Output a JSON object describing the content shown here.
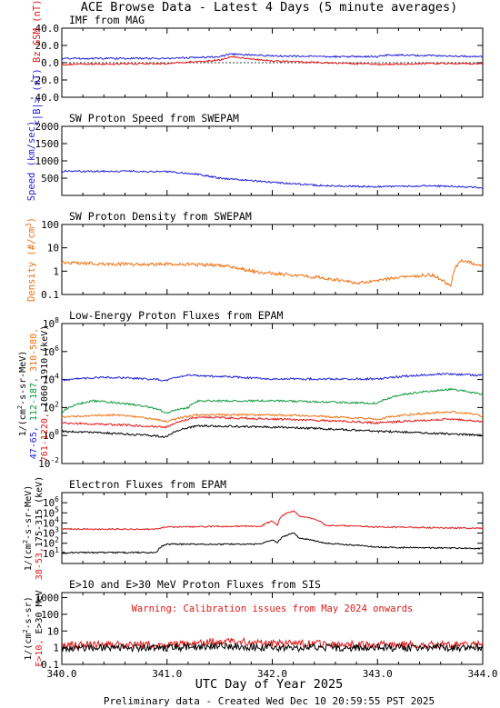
{
  "header": {
    "title": "ACE Browse Data  - Latest 4 Days (5 minute averages)"
  },
  "footer": {
    "xlabel": "UTC Day of Year 2025",
    "note": "Preliminary data - Created Wed Dec 10 20:59:55 PST 2025"
  },
  "xaxis": {
    "range": [
      340.0,
      344.0
    ],
    "ticks": [
      "340.0",
      "341.0",
      "342.0",
      "343.0",
      "344.0"
    ]
  },
  "colors": {
    "blue": "#1f1fd6",
    "red": "#e01818",
    "green": "#0f9a3c",
    "orange": "#f07010",
    "black": "#000000"
  },
  "chart_data": [
    {
      "type": "line",
      "title": "IMF from MAG",
      "ylabel_parts": [
        {
          "text": "<|B|>",
          "unit": " (nT)",
          "color": "blue"
        },
        {
          "text": "Bz GSM",
          "unit": " (nT)",
          "color": "red"
        }
      ],
      "ylim": [
        -40,
        40
      ],
      "yscale": "linear",
      "yticks": [
        {
          "v": -40,
          "label": "-40.0"
        },
        {
          "v": -20,
          "label": "-20.0"
        },
        {
          "v": 0,
          "label": "0.0"
        },
        {
          "v": 20,
          "label": "20.0"
        },
        {
          "v": 40,
          "label": "40.0"
        }
      ],
      "series": [
        {
          "key": "Bt",
          "color": "blue",
          "x": [
            340.0,
            341.0,
            341.5,
            341.6,
            342.0,
            342.5,
            343.0,
            343.1,
            343.6,
            344.0
          ],
          "y": [
            5,
            5,
            7,
            10,
            8,
            7,
            7,
            9,
            8,
            7
          ]
        },
        {
          "key": "Bz",
          "color": "red",
          "x": [
            340.0,
            341.0,
            341.5,
            341.6,
            342.0,
            342.5,
            343.0,
            343.5,
            344.0
          ],
          "y": [
            -2,
            -1,
            3,
            7,
            2,
            0,
            -2,
            -1,
            -1
          ]
        }
      ]
    },
    {
      "type": "line",
      "title": "SW Proton Speed from SWEPAM",
      "ylabel_parts": [
        {
          "text": "Speed (km/sec)",
          "unit": "",
          "color": "blue"
        }
      ],
      "ylim": [
        0,
        2000
      ],
      "yscale": "linear",
      "yticks": [
        {
          "v": 500,
          "label": "500"
        },
        {
          "v": 1000,
          "label": "1000"
        },
        {
          "v": 1500,
          "label": "1500"
        },
        {
          "v": 2000,
          "label": "2000"
        }
      ],
      "series": [
        {
          "key": "speed",
          "color": "blue",
          "x": [
            340.0,
            340.5,
            341.0,
            341.3,
            341.5,
            342.0,
            342.5,
            343.0,
            343.5,
            344.0
          ],
          "y": [
            700,
            700,
            690,
            610,
            500,
            380,
            280,
            250,
            280,
            230
          ]
        }
      ]
    },
    {
      "type": "line",
      "title": "SW Proton Density from SWEPAM",
      "ylabel_parts": [
        {
          "text": "Density (#/cm",
          "unit": "3",
          "tail": ")",
          "color": "orange"
        }
      ],
      "ylim": [
        0.1,
        100
      ],
      "yscale": "log",
      "yticks": [
        {
          "v": 0.1,
          "label": "0.1"
        },
        {
          "v": 1,
          "label": "1"
        },
        {
          "v": 10,
          "label": "10"
        },
        {
          "v": 100,
          "label": "100"
        }
      ],
      "series": [
        {
          "key": "density",
          "color": "orange",
          "x": [
            340.0,
            340.5,
            341.0,
            341.5,
            341.8,
            342.0,
            342.5,
            342.8,
            343.0,
            343.5,
            343.7,
            343.8,
            344.0
          ],
          "y": [
            2.3,
            2.0,
            2.0,
            1.8,
            1.0,
            0.8,
            0.5,
            0.3,
            0.4,
            0.7,
            0.2,
            3.0,
            1.5
          ]
        }
      ]
    },
    {
      "type": "line",
      "title": "Low-Energy Proton Fluxes from EPAM",
      "ylabel_lines": [
        {
          "parts": [
            {
              "text": "1/(cm",
              "color": "black"
            },
            {
              "text": "2",
              "sup": true,
              "color": "black"
            },
            {
              "text": "-s-sr-MeV)",
              "color": "black"
            }
          ]
        },
        {
          "parts": [
            {
              "text": "47-65,",
              "color": "blue"
            },
            {
              "text": " 112-187,",
              "color": "green"
            },
            {
              "text": " 310-580,",
              "color": "orange"
            }
          ]
        },
        {
          "parts": [
            {
              "text": "761-1220,",
              "color": "red"
            },
            {
              "text": " 1060-1910 (keV)",
              "color": "black"
            }
          ]
        }
      ],
      "ylim": [
        0.01,
        100000000
      ],
      "yscale": "log",
      "yticks": [
        {
          "v": 0.01,
          "label": "10",
          "exp": "-2"
        },
        {
          "v": 1,
          "label": "10",
          "exp": "0"
        },
        {
          "v": 100,
          "label": "10",
          "exp": "2"
        },
        {
          "v": 10000,
          "label": "10",
          "exp": "4"
        },
        {
          "v": 1000000,
          "label": "10",
          "exp": "6"
        },
        {
          "v": 100000000,
          "label": "10",
          "exp": "8"
        }
      ],
      "series": [
        {
          "key": "p47",
          "color": "blue",
          "x": [
            340.0,
            340.4,
            341.0,
            341.2,
            342.0,
            343.0,
            343.6,
            344.0
          ],
          "y": [
            9000,
            15000,
            9000,
            20000,
            11000,
            11000,
            25000,
            20000
          ]
        },
        {
          "key": "p112",
          "color": "green",
          "x": [
            340.0,
            340.3,
            341.0,
            341.2,
            341.3,
            342.0,
            343.0,
            343.7,
            344.0
          ],
          "y": [
            40,
            300,
            40,
            100,
            300,
            300,
            200,
            2000,
            800
          ]
        },
        {
          "key": "p310",
          "color": "orange",
          "x": [
            340.0,
            340.5,
            341.0,
            341.3,
            342.0,
            343.0,
            343.7,
            344.0
          ],
          "y": [
            20,
            30,
            10,
            30,
            30,
            15,
            50,
            25
          ]
        },
        {
          "key": "p761",
          "color": "red",
          "x": [
            340.0,
            341.0,
            341.3,
            342.0,
            343.0,
            343.7,
            344.0
          ],
          "y": [
            8,
            4,
            20,
            15,
            8,
            15,
            10
          ]
        },
        {
          "key": "p1060",
          "color": "black",
          "x": [
            340.0,
            341.0,
            341.3,
            342.0,
            343.0,
            344.0
          ],
          "y": [
            2,
            0.8,
            5,
            4,
            2,
            1
          ]
        }
      ]
    },
    {
      "type": "line",
      "title": "Electron Fluxes from EPAM",
      "ylabel_lines": [
        {
          "parts": [
            {
              "text": "1/(cm",
              "color": "black"
            },
            {
              "text": "2",
              "sup": true,
              "color": "black"
            },
            {
              "text": "-s-sr-MeV)",
              "color": "black"
            }
          ]
        },
        {
          "parts": [
            {
              "text": "38-53,",
              "color": "red"
            },
            {
              "text": "175-315 (keV)",
              "color": "black"
            }
          ]
        }
      ],
      "ylim": [
        1,
        10000000
      ],
      "yscale": "log",
      "yticks": [
        {
          "v": 10,
          "label": "10",
          "exp": "1"
        },
        {
          "v": 100,
          "label": "10",
          "exp": "2"
        },
        {
          "v": 1000,
          "label": "10",
          "exp": "3"
        },
        {
          "v": 10000,
          "label": "10",
          "exp": "4"
        },
        {
          "v": 100000,
          "label": "10",
          "exp": "5"
        },
        {
          "v": 1000000,
          "label": "10",
          "exp": "6"
        }
      ],
      "series": [
        {
          "key": "e38",
          "color": "red",
          "x": [
            340.0,
            340.9,
            341.0,
            341.9,
            342.0,
            342.05,
            342.2,
            342.25,
            342.5,
            343.0,
            344.0
          ],
          "y": [
            2500,
            2500,
            4000,
            5000,
            15000,
            5000,
            150000,
            50000,
            6000,
            4000,
            3000
          ]
        },
        {
          "key": "e175",
          "color": "black",
          "x": [
            340.0,
            340.9,
            341.0,
            341.9,
            342.0,
            342.05,
            342.2,
            342.25,
            342.5,
            343.0,
            344.0
          ],
          "y": [
            12,
            12,
            80,
            80,
            200,
            100,
            1000,
            300,
            100,
            40,
            30
          ]
        }
      ]
    },
    {
      "type": "line",
      "title": "E>10 and E>30 MeV Proton Fluxes from SIS",
      "annotation": "Warning: Calibration issues from May 2024 onwards",
      "ylabel_lines": [
        {
          "parts": [
            {
              "text": "1/(cm",
              "color": "black"
            },
            {
              "text": "2",
              "sup": true,
              "color": "black"
            },
            {
              "text": "-s-sr)",
              "color": "black"
            }
          ]
        },
        {
          "parts": [
            {
              "text": "E>10,",
              "color": "red"
            },
            {
              "text": " E>30 MeV",
              "color": "black"
            }
          ]
        }
      ],
      "ylim": [
        0.1,
        2000
      ],
      "yscale": "log",
      "yticks": [
        {
          "v": 0.1,
          "label": "0.1"
        },
        {
          "v": 1,
          "label": "1"
        },
        {
          "v": 10,
          "label": "10"
        },
        {
          "v": 100,
          "label": "100"
        },
        {
          "v": 1000,
          "label": "1000"
        }
      ],
      "series": [
        {
          "key": "gt10",
          "color": "red",
          "x": [
            340.0,
            341.0,
            341.5,
            342.0,
            343.0,
            344.0
          ],
          "y": [
            1.5,
            1.5,
            2.5,
            1.8,
            1.5,
            1.5
          ]
        },
        {
          "key": "gt30",
          "color": "black",
          "x": [
            340.0,
            341.0,
            341.5,
            342.0,
            343.0,
            344.0
          ],
          "y": [
            1.0,
            1.0,
            1.2,
            1.0,
            1.0,
            1.0
          ]
        }
      ]
    }
  ]
}
